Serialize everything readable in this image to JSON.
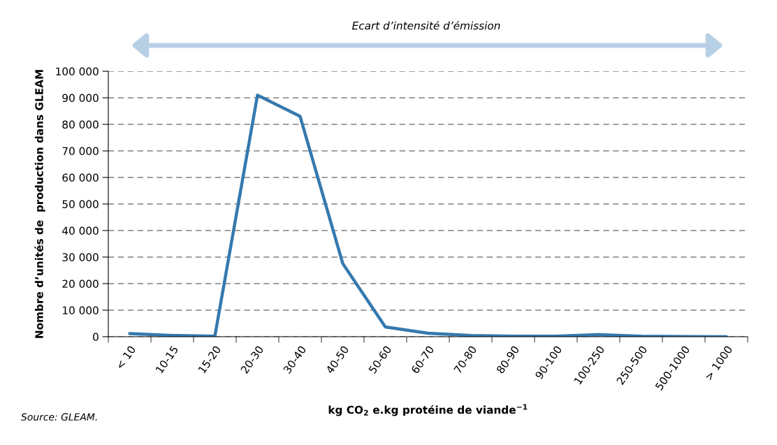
{
  "chart_data": {
    "type": "line",
    "xlabel": "kg CO$_{2}$ e.kg protéine de viande$^{−1}$",
    "ylabel": "Nombre d’unités de  production dans GLEAM",
    "categories": [
      "< 10",
      "10-15",
      "15-20",
      "20-30",
      "30-40",
      "40-50",
      "50-60",
      "60-70",
      "70-80",
      "80-90",
      "90-100",
      "100-250",
      "250-500",
      "500-1000",
      "> 1000"
    ],
    "series": [
      {
        "color": "#3579ae",
        "values": [
          1200,
          500,
          200,
          91000,
          83000,
          27600,
          3700,
          1300,
          500,
          200,
          200,
          800,
          200,
          100,
          0
        ]
      }
    ],
    "ylim": [
      0,
      100000
    ],
    "yticks": [
      {
        "value": 0,
        "label": "0"
      },
      {
        "value": 10000,
        "label": "10 000"
      },
      {
        "value": 20000,
        "label": "20 000"
      },
      {
        "value": 30000,
        "label": "30 000"
      },
      {
        "value": 40000,
        "label": "40 000"
      },
      {
        "value": 50000,
        "label": "50 000"
      },
      {
        "value": 60000,
        "label": "60 000"
      },
      {
        "value": 70000,
        "label": "70 000"
      },
      {
        "value": 80000,
        "label": "80 000"
      },
      {
        "value": 90000,
        "label": "90 000"
      },
      {
        "value": 100000,
        "label": "100 000"
      }
    ],
    "grid": "y",
    "legend": false,
    "marker": "none",
    "line_style": "solid",
    "annotations": [
      "Ecart d’intensité d’émission",
      "Source: GLEAM."
    ]
  }
}
